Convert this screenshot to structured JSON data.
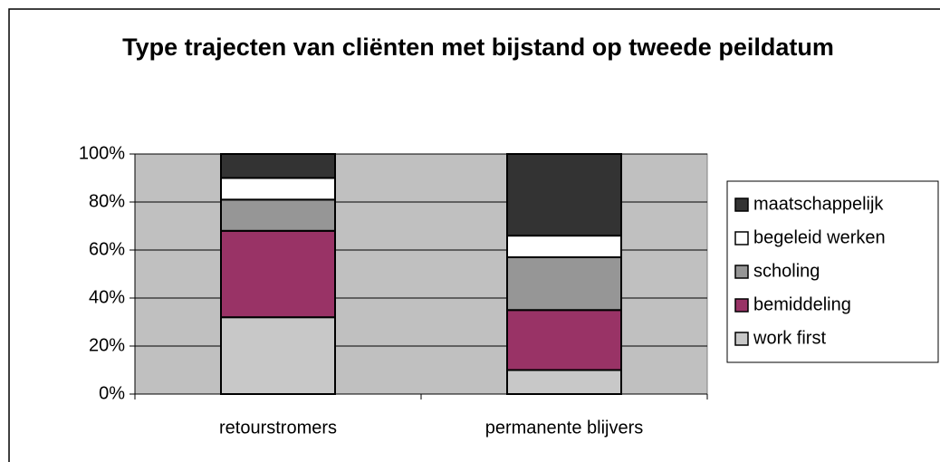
{
  "chart_data": {
    "type": "stacked_bar",
    "title": "Type trajecten van cliënten met bijstand op tweede peildatum",
    "categories": [
      "retourstromers",
      "permanente blijvers"
    ],
    "series": [
      {
        "name": "work first",
        "color": "#c8c8c8",
        "values": [
          32,
          10
        ]
      },
      {
        "name": "bemiddeling",
        "color": "#993366",
        "values": [
          36,
          25
        ]
      },
      {
        "name": "scholing",
        "color": "#969696",
        "values": [
          13,
          22
        ]
      },
      {
        "name": "begeleid werken",
        "color": "#ffffff",
        "values": [
          9,
          9
        ]
      },
      {
        "name": "maatschappelijk",
        "color": "#333333",
        "values": [
          10,
          34
        ]
      }
    ],
    "ylim": [
      0,
      100
    ],
    "yticks": [
      {
        "value": 0,
        "label": "0%"
      },
      {
        "value": 20,
        "label": "20%"
      },
      {
        "value": 40,
        "label": "40%"
      },
      {
        "value": 60,
        "label": "60%"
      },
      {
        "value": 80,
        "label": "80%"
      },
      {
        "value": 100,
        "label": "100%"
      }
    ],
    "grid": true,
    "legend": "right",
    "plot_background": "#c0c0c0"
  }
}
